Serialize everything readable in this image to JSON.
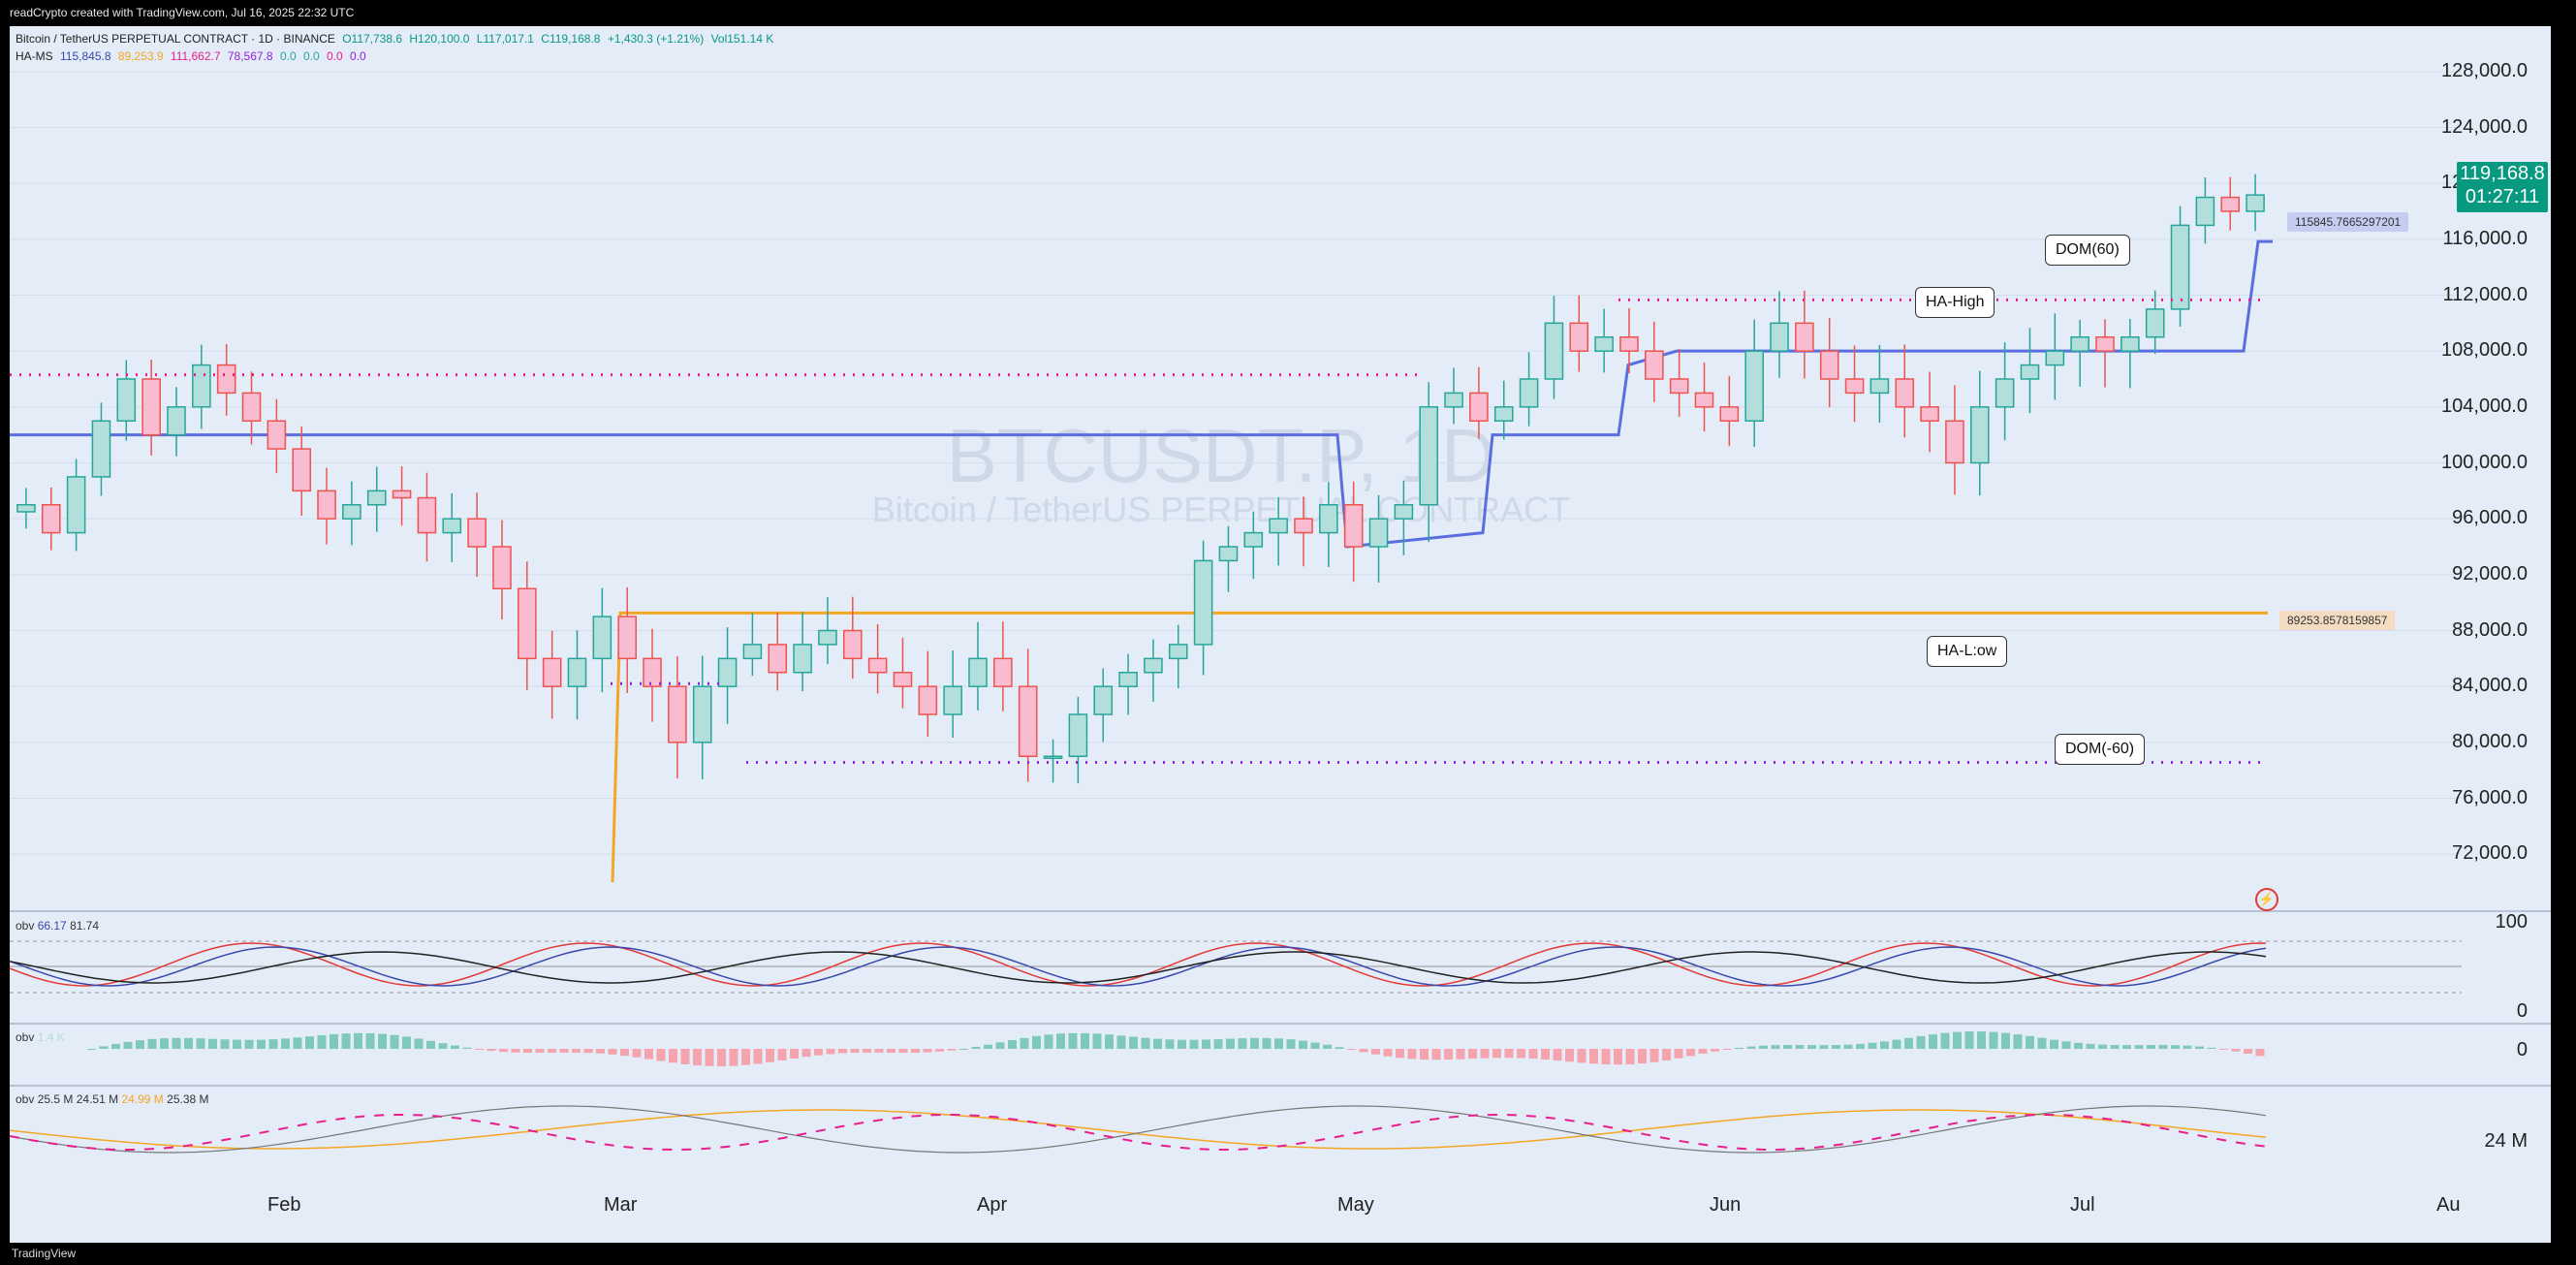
{
  "header": {
    "created": "readCrypto created with TradingView.com, Jul 16, 2025 22:32 UTC"
  },
  "symbol": {
    "name": "Bitcoin / TetherUS PERPETUAL CONTRACT · 1D · BINANCE",
    "open": "O117,738.6",
    "high": "H120,100.0",
    "low": "L117,017.1",
    "close": "C119,168.8",
    "change": "+1,430.3 (+1.21%)",
    "volume": "Vol151.14 K",
    "watermark_main": "BTCUSDT.P, 1D",
    "watermark_sub": "Bitcoin / TetherUS PERPETUAL CONTRACT"
  },
  "indicator_hams": {
    "name": "HA-MS",
    "v1": "115,845.8",
    "v2": "89,253.9",
    "v3": "111,662.7",
    "v4": "78,567.8",
    "v5": "0.0",
    "v6": "0.0",
    "v7": "0.0",
    "v8": "0.0"
  },
  "price_axis": {
    "labels": [
      "128,000.0",
      "124,000.0",
      "120,000.0",
      "116,000.0",
      "112,000.0",
      "108,000.0",
      "104,000.0",
      "100,000.0",
      "96,000.0",
      "92,000.0",
      "88,000.0",
      "84,000.0",
      "80,000.0",
      "76,000.0",
      "72,000.0"
    ],
    "current_price": "119,168.8",
    "countdown": "01:27:11",
    "tag_high": "115845.7665297201",
    "tag_low": "89253.8578159857"
  },
  "callouts": {
    "dom_plus": "DOM(60)",
    "ha_high": "HA-High",
    "ha_low": "HA-L:ow",
    "dom_minus": "DOM(-60)"
  },
  "panes": {
    "obv1": {
      "label": "obv",
      "v1": "66.17",
      "v2": "81.74",
      "axis_top": "100",
      "axis_bottom": "0"
    },
    "obv2": {
      "label": "obv",
      "v1": "1.4 K",
      "axis_zero": "0"
    },
    "obv3": {
      "label": "obv",
      "v1": "25.5 M",
      "v2": "24.51 M",
      "v3": "24.99 M",
      "v4": "25.38 M",
      "axis_label": "24 M"
    }
  },
  "time_axis": {
    "labels": [
      "Feb",
      "Mar",
      "Apr",
      "May",
      "Jun",
      "Jul",
      "Au"
    ]
  },
  "footer": {
    "logo": "TradingView"
  },
  "colors": {
    "up": "#26a69a",
    "down": "#ef5350",
    "ha_high_line": "#5b6ee1",
    "ha_low_line": "#f5a623",
    "dom_plus": "#e91e8c",
    "dom_minus": "#8e24e0",
    "badge": "#089981"
  },
  "chart_data": {
    "type": "candlestick",
    "ylim": [
      70000,
      130000
    ],
    "ha_high_level": 115845.77,
    "ha_low_level": 89253.86,
    "dom_plus_level": 111662.7,
    "dom_minus_level": 78567.8,
    "close_series": [
      97000,
      95000,
      99000,
      103000,
      106000,
      102000,
      104000,
      107000,
      105000,
      103000,
      101000,
      98000,
      96000,
      97000,
      98000,
      97500,
      95000,
      96000,
      94000,
      91000,
      86000,
      84000,
      86000,
      89000,
      86000,
      84000,
      80000,
      84000,
      86000,
      87000,
      85000,
      87000,
      88000,
      86000,
      85000,
      84000,
      82000,
      84000,
      86000,
      84000,
      79000,
      79000,
      82000,
      84000,
      85000,
      86000,
      87000,
      93000,
      94000,
      95000,
      96000,
      95000,
      97000,
      94000,
      96000,
      97000,
      104000,
      105000,
      103000,
      104000,
      106000,
      110000,
      108000,
      109000,
      108000,
      106000,
      105000,
      104000,
      103000,
      108000,
      110000,
      108000,
      106000,
      105000,
      106000,
      104000,
      103000,
      100000,
      104000,
      106000,
      107000,
      108000,
      109000,
      108000,
      109000,
      111000,
      117000,
      119000,
      118000,
      119169
    ]
  }
}
